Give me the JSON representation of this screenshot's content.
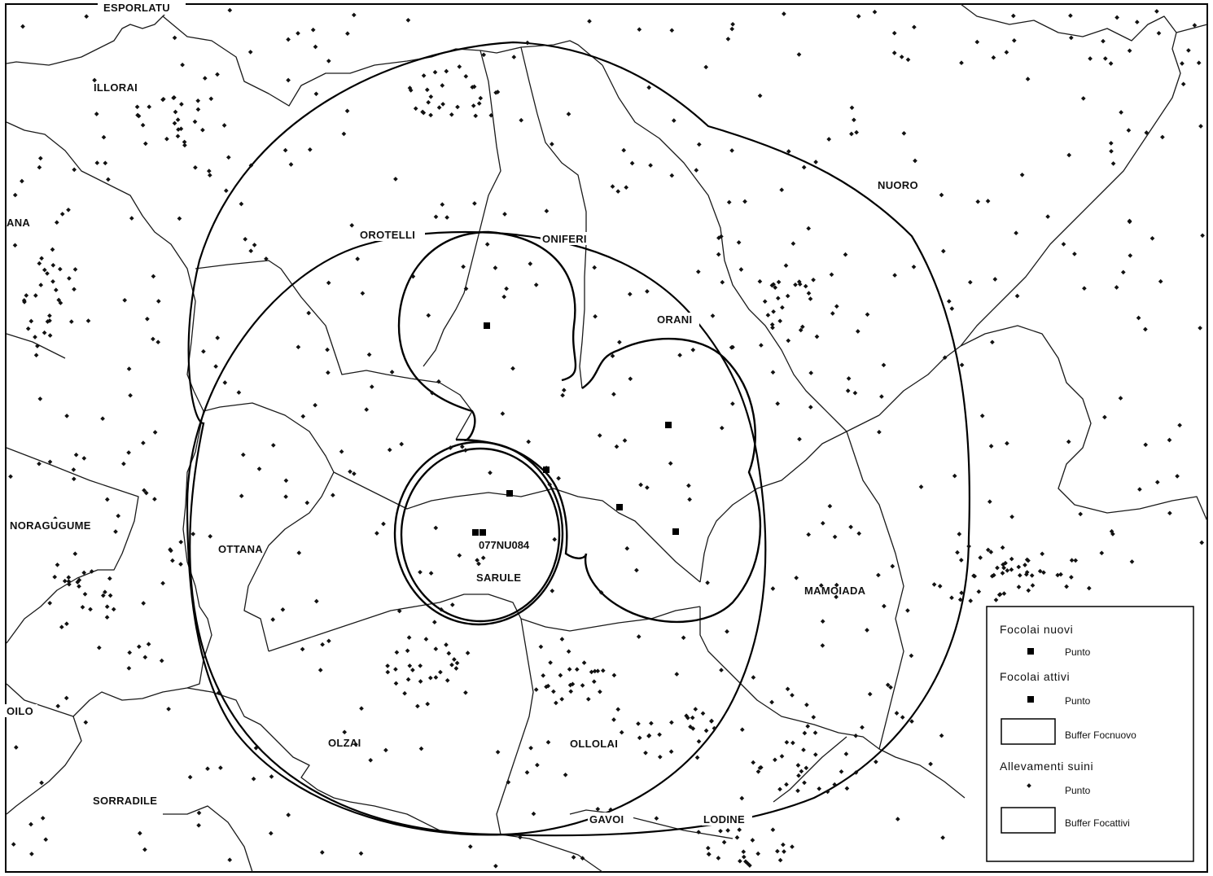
{
  "places": {
    "esporlatu": "ESPORLATU",
    "illorai": "ILLORAI",
    "ana": "ANA",
    "orotelli": "OROTELLI",
    "oniferi": "ONIFERI",
    "nuoro": "NUORO",
    "orani": "ORANI",
    "noragugume": "NORAGUGUME",
    "ottana": "OTTANA",
    "sarule": "SARULE",
    "mamoiada": "MAMOIADA",
    "oilo": "OILO",
    "olzai": "OLZAI",
    "ollolai": "OLLOLAI",
    "sorradile": "SORRADILE",
    "gavoi": "GAVOI",
    "lodine": "LODINE"
  },
  "focus_label": "077NU084",
  "legend": {
    "new_outbreaks": "Focolai nuovi",
    "new_outbreaks_point": "Punto",
    "active_outbreaks": "Focolai attivi",
    "active_outbreaks_point": "Punto",
    "buffer_new": "Buffer Focnuovo",
    "pig_farms": "Allevamenti suini",
    "pig_farms_point": "Punto",
    "buffer_active": "Buffer Focattivi"
  }
}
